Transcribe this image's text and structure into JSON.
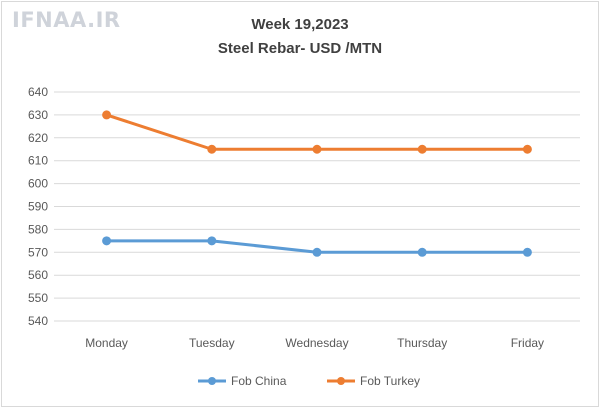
{
  "watermark": "IFNAA.IR",
  "chart_data": {
    "type": "line",
    "title": "Week 19,2023",
    "subtitle": "Steel Rebar- USD /MTN",
    "categories": [
      "Monday",
      "Tuesday",
      "Wednesday",
      "Thursday",
      "Friday"
    ],
    "series": [
      {
        "name": "Fob China",
        "values": [
          575,
          575,
          570,
          570,
          570
        ],
        "color": "#5b9bd5"
      },
      {
        "name": "Fob Turkey",
        "values": [
          630,
          615,
          615,
          615,
          615
        ],
        "color": "#ed7d31"
      }
    ],
    "ylim": [
      540,
      640
    ],
    "yticks": [
      540,
      550,
      560,
      570,
      580,
      590,
      600,
      610,
      620,
      630,
      640
    ],
    "grid": true,
    "legend": "bottom"
  }
}
